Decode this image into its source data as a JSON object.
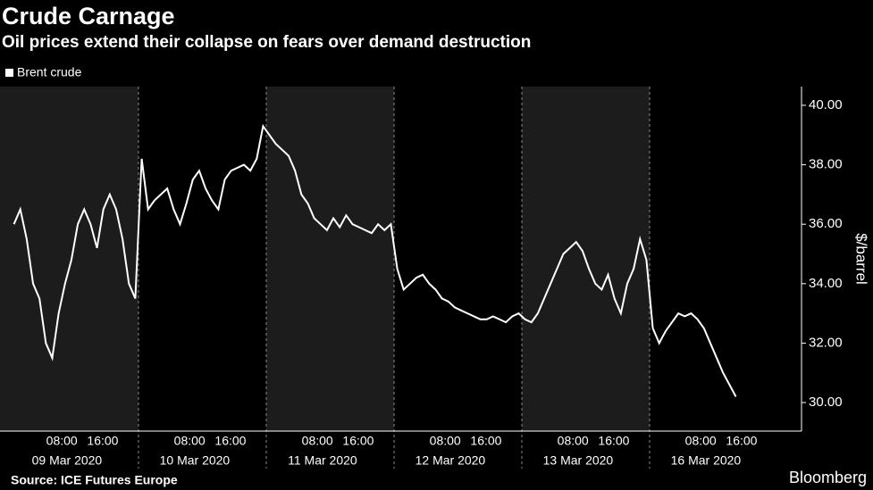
{
  "chart_data": {
    "type": "line",
    "title": "Crude Carnage",
    "subtitle": "Oil prices extend their collapse on fears over demand destruction",
    "y_label": "$/barrel",
    "source": "Source: ICE Futures Europe",
    "brand": "Bloomberg",
    "series": [
      {
        "name": "Brent crude",
        "color": "#ffffff"
      }
    ],
    "time_ticks": [
      "08:00",
      "16:00"
    ],
    "days": [
      {
        "label": "09 Mar 2020",
        "values": [
          36,
          36.5,
          35.5,
          34,
          33.5,
          32,
          31.5,
          33,
          34,
          34.8,
          36,
          36.5,
          36,
          35.2,
          36.5,
          37,
          36.5,
          35.5,
          34,
          33.5
        ]
      },
      {
        "label": "10 Mar 2020",
        "values": [
          38.2,
          36.5,
          36.8,
          37,
          37.2,
          36.5,
          36,
          36.7,
          37.5,
          37.8,
          37.2,
          36.8,
          36.5,
          37.5,
          37.8,
          37.9,
          38,
          37.8,
          38.2,
          39.3
        ]
      },
      {
        "label": "11 Mar 2020",
        "values": [
          39,
          38.7,
          38.5,
          38.3,
          37.8,
          37,
          36.7,
          36.2,
          36,
          35.8,
          36.2,
          35.9,
          36.3,
          36,
          35.9,
          35.8,
          35.7,
          36,
          35.8,
          36
        ]
      },
      {
        "label": "12 Mar 2020",
        "values": [
          34.5,
          33.8,
          34,
          34.2,
          34.3,
          34,
          33.8,
          33.5,
          33.4,
          33.2,
          33.1,
          33,
          32.9,
          32.8,
          32.8,
          32.9,
          32.8,
          32.7,
          32.9,
          33
        ]
      },
      {
        "label": "13 Mar 2020",
        "values": [
          32.8,
          32.7,
          33,
          33.5,
          34,
          34.5,
          35,
          35.2,
          35.4,
          35.1,
          34.5,
          34,
          33.8,
          34.3,
          33.5,
          33,
          34,
          34.5,
          35.5,
          34.8
        ]
      },
      {
        "label": "16 Mar 2020",
        "values": [
          32.5,
          32,
          32.4,
          32.7,
          33,
          32.9,
          33,
          32.8,
          32.5,
          32,
          31.5,
          31,
          30.6,
          30.2
        ]
      }
    ],
    "ylim": [
      29.04,
      40.63
    ],
    "yticks": [
      {
        "value": 30,
        "label": "30.00"
      },
      {
        "value": 32,
        "label": "32.00"
      },
      {
        "value": 34,
        "label": "34.00"
      },
      {
        "value": 36,
        "label": "36.00"
      },
      {
        "value": 38,
        "label": "38.00"
      },
      {
        "value": 40,
        "label": "40.00"
      }
    ]
  }
}
